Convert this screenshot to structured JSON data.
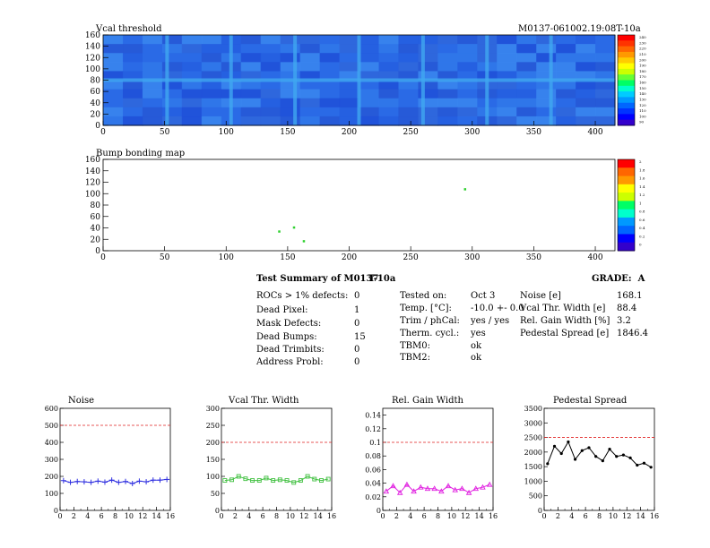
{
  "header": {
    "module_id": "M0137-061002.19:08T-10a"
  },
  "maps": [
    {
      "id": "vcal",
      "title": "Vcal threshold",
      "x_ticks": [
        0,
        50,
        100,
        150,
        200,
        250,
        300,
        350,
        400
      ],
      "y_ticks": [
        0,
        20,
        40,
        60,
        80,
        100,
        120,
        140,
        160
      ],
      "xlim": [
        0,
        416
      ],
      "ylim": [
        0,
        160
      ],
      "palette_labels": [
        "240",
        "230",
        "220",
        "210",
        "200",
        "190",
        "180",
        "170",
        "160",
        "150",
        "140",
        "130",
        "120",
        "110",
        "100",
        "90"
      ]
    },
    {
      "id": "bump",
      "title": "Bump bonding map",
      "x_ticks": [
        0,
        50,
        100,
        150,
        200,
        250,
        300,
        350,
        400
      ],
      "y_ticks": [
        0,
        20,
        40,
        60,
        80,
        100,
        120,
        140,
        160
      ],
      "xlim": [
        0,
        416
      ],
      "ylim": [
        0,
        160
      ],
      "palette_labels": [
        "2",
        "1.8",
        "1.6",
        "1.4",
        "1.2",
        "1",
        "0.8",
        "0.6",
        "0.4",
        "0.2",
        "0"
      ],
      "hot_pixels": [
        [
          143,
          34
        ],
        [
          155,
          41
        ],
        [
          294,
          108
        ],
        [
          163,
          17
        ]
      ]
    }
  ],
  "summary": {
    "title": "Test Summary of M0137",
    "tag": "T-10a",
    "grade_label": "GRADE:",
    "grade_value": "A",
    "col1": [
      {
        "label": "ROCs > 1% defects:",
        "value": "0"
      },
      {
        "label": "Dead Pixel:",
        "value": "1"
      },
      {
        "label": "Mask Defects:",
        "value": "0"
      },
      {
        "label": "Dead Bumps:",
        "value": "15"
      },
      {
        "label": "Dead Trimbits:",
        "value": "0"
      },
      {
        "label": "Address Probl:",
        "value": "0"
      }
    ],
    "col2": [
      {
        "label": "Tested on:",
        "value": "Oct 3"
      },
      {
        "label": "Temp. [°C]:",
        "value": "-10.0 +- 0.0"
      },
      {
        "label": "Trim / phCal:",
        "value": "yes / yes"
      },
      {
        "label": "Therm. cycl.:",
        "value": "yes"
      },
      {
        "label": "TBM0:",
        "value": "ok"
      },
      {
        "label": "TBM2:",
        "value": "ok"
      }
    ],
    "col3": [
      {
        "label": "Noise [e]",
        "value": "168.1"
      },
      {
        "label": "Vcal Thr. Width [e]",
        "value": "88.4"
      },
      {
        "label": "Rel. Gain Width [%]",
        "value": "3.2"
      },
      {
        "label": "Pedestal Spread [e]",
        "value": "1846.4"
      }
    ]
  },
  "chart_data": [
    {
      "type": "line",
      "title": "Noise",
      "color": "#3030e0",
      "marker": "plus",
      "x": [
        0,
        1,
        2,
        3,
        4,
        5,
        6,
        7,
        8,
        9,
        10,
        11,
        12,
        13,
        14,
        15
      ],
      "values": [
        175,
        165,
        170,
        168,
        165,
        172,
        166,
        178,
        165,
        170,
        158,
        172,
        168,
        178,
        178,
        182
      ],
      "xlim": [
        0,
        16
      ],
      "ylim": [
        0,
        600
      ],
      "limit": 500,
      "x_ticks": [
        0,
        2,
        4,
        6,
        8,
        10,
        12,
        14,
        16
      ],
      "y_ticks": [
        0,
        100,
        200,
        300,
        400,
        500,
        600
      ]
    },
    {
      "type": "line",
      "title": "Vcal Thr. Width",
      "color": "#40c040",
      "marker": "square",
      "x": [
        0,
        1,
        2,
        3,
        4,
        5,
        6,
        7,
        8,
        9,
        10,
        11,
        12,
        13,
        14,
        15
      ],
      "values": [
        88,
        90,
        100,
        93,
        88,
        88,
        95,
        88,
        90,
        88,
        82,
        88,
        100,
        92,
        88,
        92
      ],
      "xlim": [
        0,
        16
      ],
      "ylim": [
        0,
        300
      ],
      "limit": 200,
      "x_ticks": [
        0,
        2,
        4,
        6,
        8,
        10,
        12,
        14,
        16
      ],
      "y_ticks": [
        0,
        50,
        100,
        150,
        200,
        250,
        300
      ]
    },
    {
      "type": "line",
      "title": "Rel. Gain Width",
      "color": "#e020e0",
      "marker": "triangle",
      "x": [
        0,
        1,
        2,
        3,
        4,
        5,
        6,
        7,
        8,
        9,
        10,
        11,
        12,
        13,
        14,
        15
      ],
      "values": [
        0.028,
        0.036,
        0.026,
        0.038,
        0.028,
        0.034,
        0.032,
        0.032,
        0.028,
        0.036,
        0.03,
        0.032,
        0.026,
        0.032,
        0.034,
        0.038
      ],
      "xlim": [
        0,
        16
      ],
      "ylim": [
        0,
        0.15
      ],
      "limit": 0.1,
      "x_ticks": [
        0,
        2,
        4,
        6,
        8,
        10,
        12,
        14,
        16
      ],
      "y_ticks": [
        0,
        0.02,
        0.04,
        0.06,
        0.08,
        0.1,
        0.12,
        0.14
      ]
    },
    {
      "type": "line",
      "title": "Pedestal Spread",
      "color": "#000000",
      "marker": "dot",
      "x": [
        0,
        1,
        2,
        3,
        4,
        5,
        6,
        7,
        8,
        9,
        10,
        11,
        12,
        13,
        14,
        15
      ],
      "values": [
        1600,
        2200,
        1950,
        2350,
        1750,
        2050,
        2150,
        1850,
        1700,
        2100,
        1850,
        1900,
        1800,
        1550,
        1620,
        1480
      ],
      "xlim": [
        0,
        16
      ],
      "ylim": [
        0,
        3500
      ],
      "limit": 2500,
      "x_ticks": [
        0,
        2,
        4,
        6,
        8,
        10,
        12,
        14,
        16
      ],
      "y_ticks": [
        0,
        500,
        1000,
        1500,
        2000,
        2500,
        3000,
        3500
      ]
    }
  ]
}
